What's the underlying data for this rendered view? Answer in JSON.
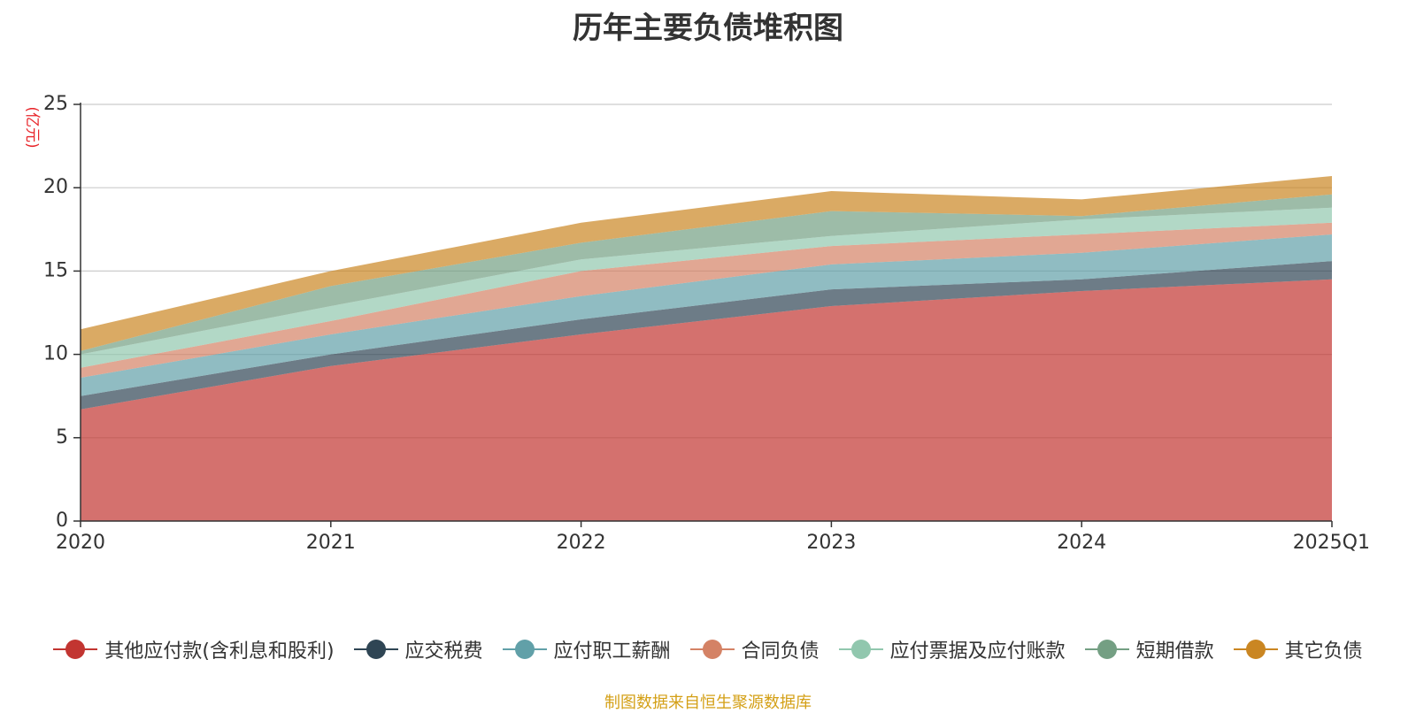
{
  "title": "历年主要负债堆积图",
  "source_note": "制图数据来自恒生聚源数据库",
  "chart_data": {
    "type": "area",
    "stacked": true,
    "title": "历年主要负债堆积图",
    "ylabel": "(亿元)",
    "xlabel": "",
    "categories": [
      "2020",
      "2021",
      "2022",
      "2023",
      "2024",
      "2025Q1"
    ],
    "ylim": [
      0,
      25
    ],
    "yticks": [
      0,
      5,
      10,
      15,
      20,
      25
    ],
    "grid": true,
    "legend_position": "bottom",
    "series": [
      {
        "name": "其他应付款(含利息和股利)",
        "color": "#c23531",
        "values": [
          6.7,
          9.3,
          11.2,
          12.9,
          13.8,
          14.5
        ]
      },
      {
        "name": "应交税费",
        "color": "#2f4554",
        "values": [
          0.8,
          0.7,
          0.9,
          1.0,
          0.7,
          1.1
        ]
      },
      {
        "name": "应付职工薪酬",
        "color": "#61a0a8",
        "values": [
          1.1,
          1.2,
          1.4,
          1.5,
          1.6,
          1.6
        ]
      },
      {
        "name": "合同负债",
        "color": "#d48265",
        "values": [
          0.6,
          0.8,
          1.5,
          1.1,
          1.1,
          0.7
        ]
      },
      {
        "name": "应付票据及应付账款",
        "color": "#91c7ae",
        "values": [
          0.8,
          0.9,
          0.7,
          0.6,
          0.9,
          0.9
        ]
      },
      {
        "name": "短期借款",
        "color": "#749f83",
        "values": [
          0.2,
          1.2,
          1.0,
          1.5,
          0.2,
          0.8
        ]
      },
      {
        "name": "其它负债",
        "color": "#ca8622",
        "values": [
          1.3,
          0.9,
          1.2,
          1.2,
          1.0,
          1.1
        ]
      }
    ]
  }
}
